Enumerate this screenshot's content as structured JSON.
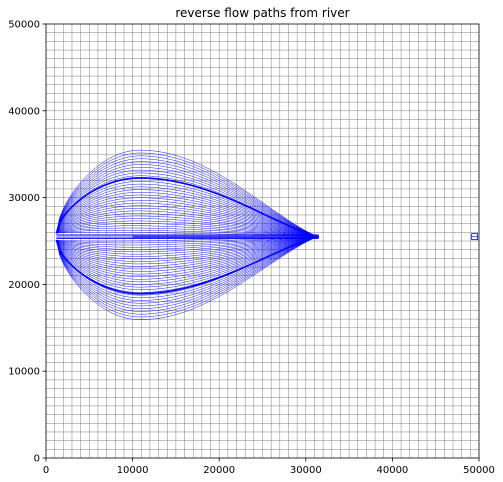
{
  "chart_data": {
    "type": "line",
    "title": "reverse flow paths from river",
    "xlabel": "",
    "ylabel": "",
    "xlim": [
      0,
      50000
    ],
    "ylim": [
      0,
      50000
    ],
    "x_ticks": [
      "0",
      "10000",
      "20000",
      "30000",
      "40000",
      "50000"
    ],
    "y_ticks": [
      "0",
      "10000",
      "20000",
      "30000",
      "40000",
      "50000"
    ],
    "grid": {
      "on": true,
      "color": "#7f7f7f",
      "cell_size": 1000
    },
    "series_color": "#0000ff",
    "river": {
      "x": 31500,
      "y": 25500
    },
    "start_x": 1200,
    "outer_envelope": {
      "top_max": 35200,
      "bottom_min": 16200,
      "at_x": 11000
    },
    "highlighted_paths": [
      {
        "max_y": 32000,
        "at_x": 10000
      },
      {
        "min_y": 19200,
        "at_x": 10000
      }
    ],
    "paths_per_side": 32,
    "far_marker": {
      "x": 49500,
      "y": 25500,
      "color": "#0000ff"
    }
  }
}
